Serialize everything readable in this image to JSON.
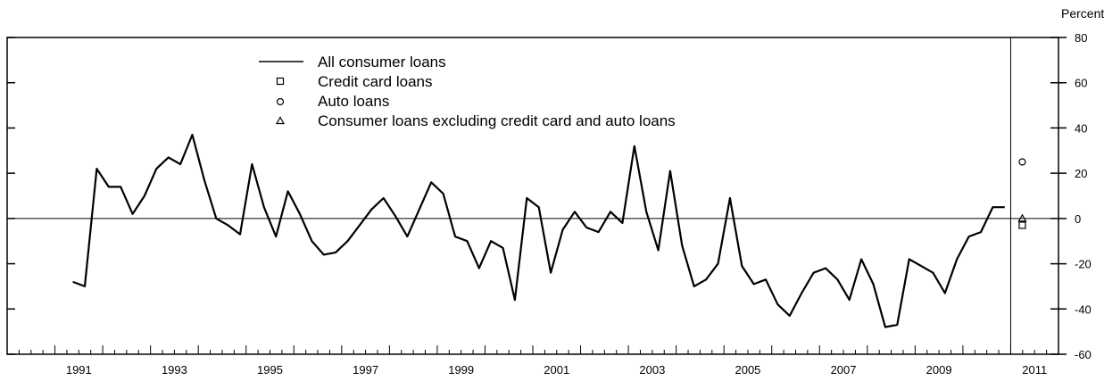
{
  "chart_data": {
    "type": "line",
    "title": "",
    "xlabel": "",
    "ylabel": "",
    "y_unit_label": "Percent",
    "ylim": [
      -60,
      80
    ],
    "y_ticks": [
      -60,
      -40,
      -20,
      0,
      20,
      40,
      60,
      80
    ],
    "y_tick_labels": [
      "-60",
      "-40",
      "-20",
      "0",
      "20",
      "40",
      "60",
      "80"
    ],
    "x_range": [
      "1990-Q1",
      "2011-Q4"
    ],
    "x_tick_labels": [
      "1991",
      "1993",
      "1995",
      "1997",
      "1999",
      "2001",
      "2003",
      "2005",
      "2007",
      "2009",
      "2011"
    ],
    "legend": {
      "placement": "top-center",
      "entries": [
        {
          "label": "All consumer loans",
          "marker": "line"
        },
        {
          "label": "Credit card loans",
          "marker": "square"
        },
        {
          "label": "Auto loans",
          "marker": "circle"
        },
        {
          "label": "Consumer loans excluding credit card and auto loans",
          "marker": "triangle"
        }
      ]
    },
    "series": [
      {
        "name": "All consumer loans",
        "x": [
          "1991-Q2",
          "1991-Q3",
          "1991-Q4",
          "1992-Q1",
          "1992-Q2",
          "1992-Q3",
          "1992-Q4",
          "1993-Q1",
          "1993-Q2",
          "1993-Q3",
          "1993-Q4",
          "1994-Q1",
          "1994-Q2",
          "1994-Q3",
          "1994-Q4",
          "1995-Q1",
          "1995-Q2",
          "1995-Q3",
          "1995-Q4",
          "1996-Q1",
          "1996-Q2",
          "1996-Q3",
          "1996-Q4",
          "1997-Q1",
          "1997-Q2",
          "1997-Q3",
          "1997-Q4",
          "1998-Q1",
          "1998-Q2",
          "1998-Q3",
          "1998-Q4",
          "1999-Q1",
          "1999-Q2",
          "1999-Q3",
          "1999-Q4",
          "2000-Q1",
          "2000-Q2",
          "2000-Q3",
          "2000-Q4",
          "2001-Q1",
          "2001-Q2",
          "2001-Q3",
          "2001-Q4",
          "2002-Q1",
          "2002-Q2",
          "2002-Q3",
          "2002-Q4",
          "2003-Q1",
          "2003-Q2",
          "2003-Q3",
          "2003-Q4",
          "2004-Q1",
          "2004-Q2",
          "2004-Q3",
          "2004-Q4",
          "2005-Q1",
          "2005-Q2",
          "2005-Q3",
          "2005-Q4",
          "2006-Q1",
          "2006-Q2",
          "2006-Q3",
          "2006-Q4",
          "2007-Q1",
          "2007-Q2",
          "2007-Q3",
          "2007-Q4",
          "2008-Q1",
          "2008-Q2",
          "2008-Q3",
          "2008-Q4",
          "2009-Q1",
          "2009-Q2",
          "2009-Q3",
          "2009-Q4",
          "2010-Q1",
          "2010-Q2",
          "2010-Q3",
          "2010-Q4"
        ],
        "values": [
          -28,
          -30,
          22,
          14,
          14,
          2,
          10,
          22,
          27,
          24,
          37,
          17,
          0,
          -3,
          -7,
          24,
          5,
          -8,
          12,
          2,
          -10,
          -16,
          -15,
          -10,
          -3,
          4,
          9,
          1,
          -8,
          4,
          16,
          11,
          -8,
          -10,
          -22,
          -10,
          -13,
          -36,
          9,
          5,
          -24,
          -5,
          3,
          -4,
          -6,
          3,
          -2,
          32,
          3,
          -14,
          21,
          -12,
          -30,
          -27,
          -20,
          9,
          -21,
          -29,
          -27,
          -38,
          -43,
          -33,
          -24,
          -22,
          -27,
          -36,
          -18,
          -29,
          -48,
          -47,
          -18,
          -21,
          -24,
          -33,
          -18,
          -8,
          -6,
          5,
          5
        ]
      },
      {
        "name": "Credit card loans",
        "x": [
          "2011-Q1"
        ],
        "values": [
          -3
        ]
      },
      {
        "name": "Auto loans",
        "x": [
          "2011-Q1"
        ],
        "values": [
          25
        ]
      },
      {
        "name": "Consumer loans excluding credit card and auto loans",
        "x": [
          "2011-Q1"
        ],
        "values": [
          0
        ]
      }
    ],
    "reference_lines": {
      "zero_line": true,
      "vertical_marker_at": "2010-Q4"
    },
    "grid": false
  }
}
